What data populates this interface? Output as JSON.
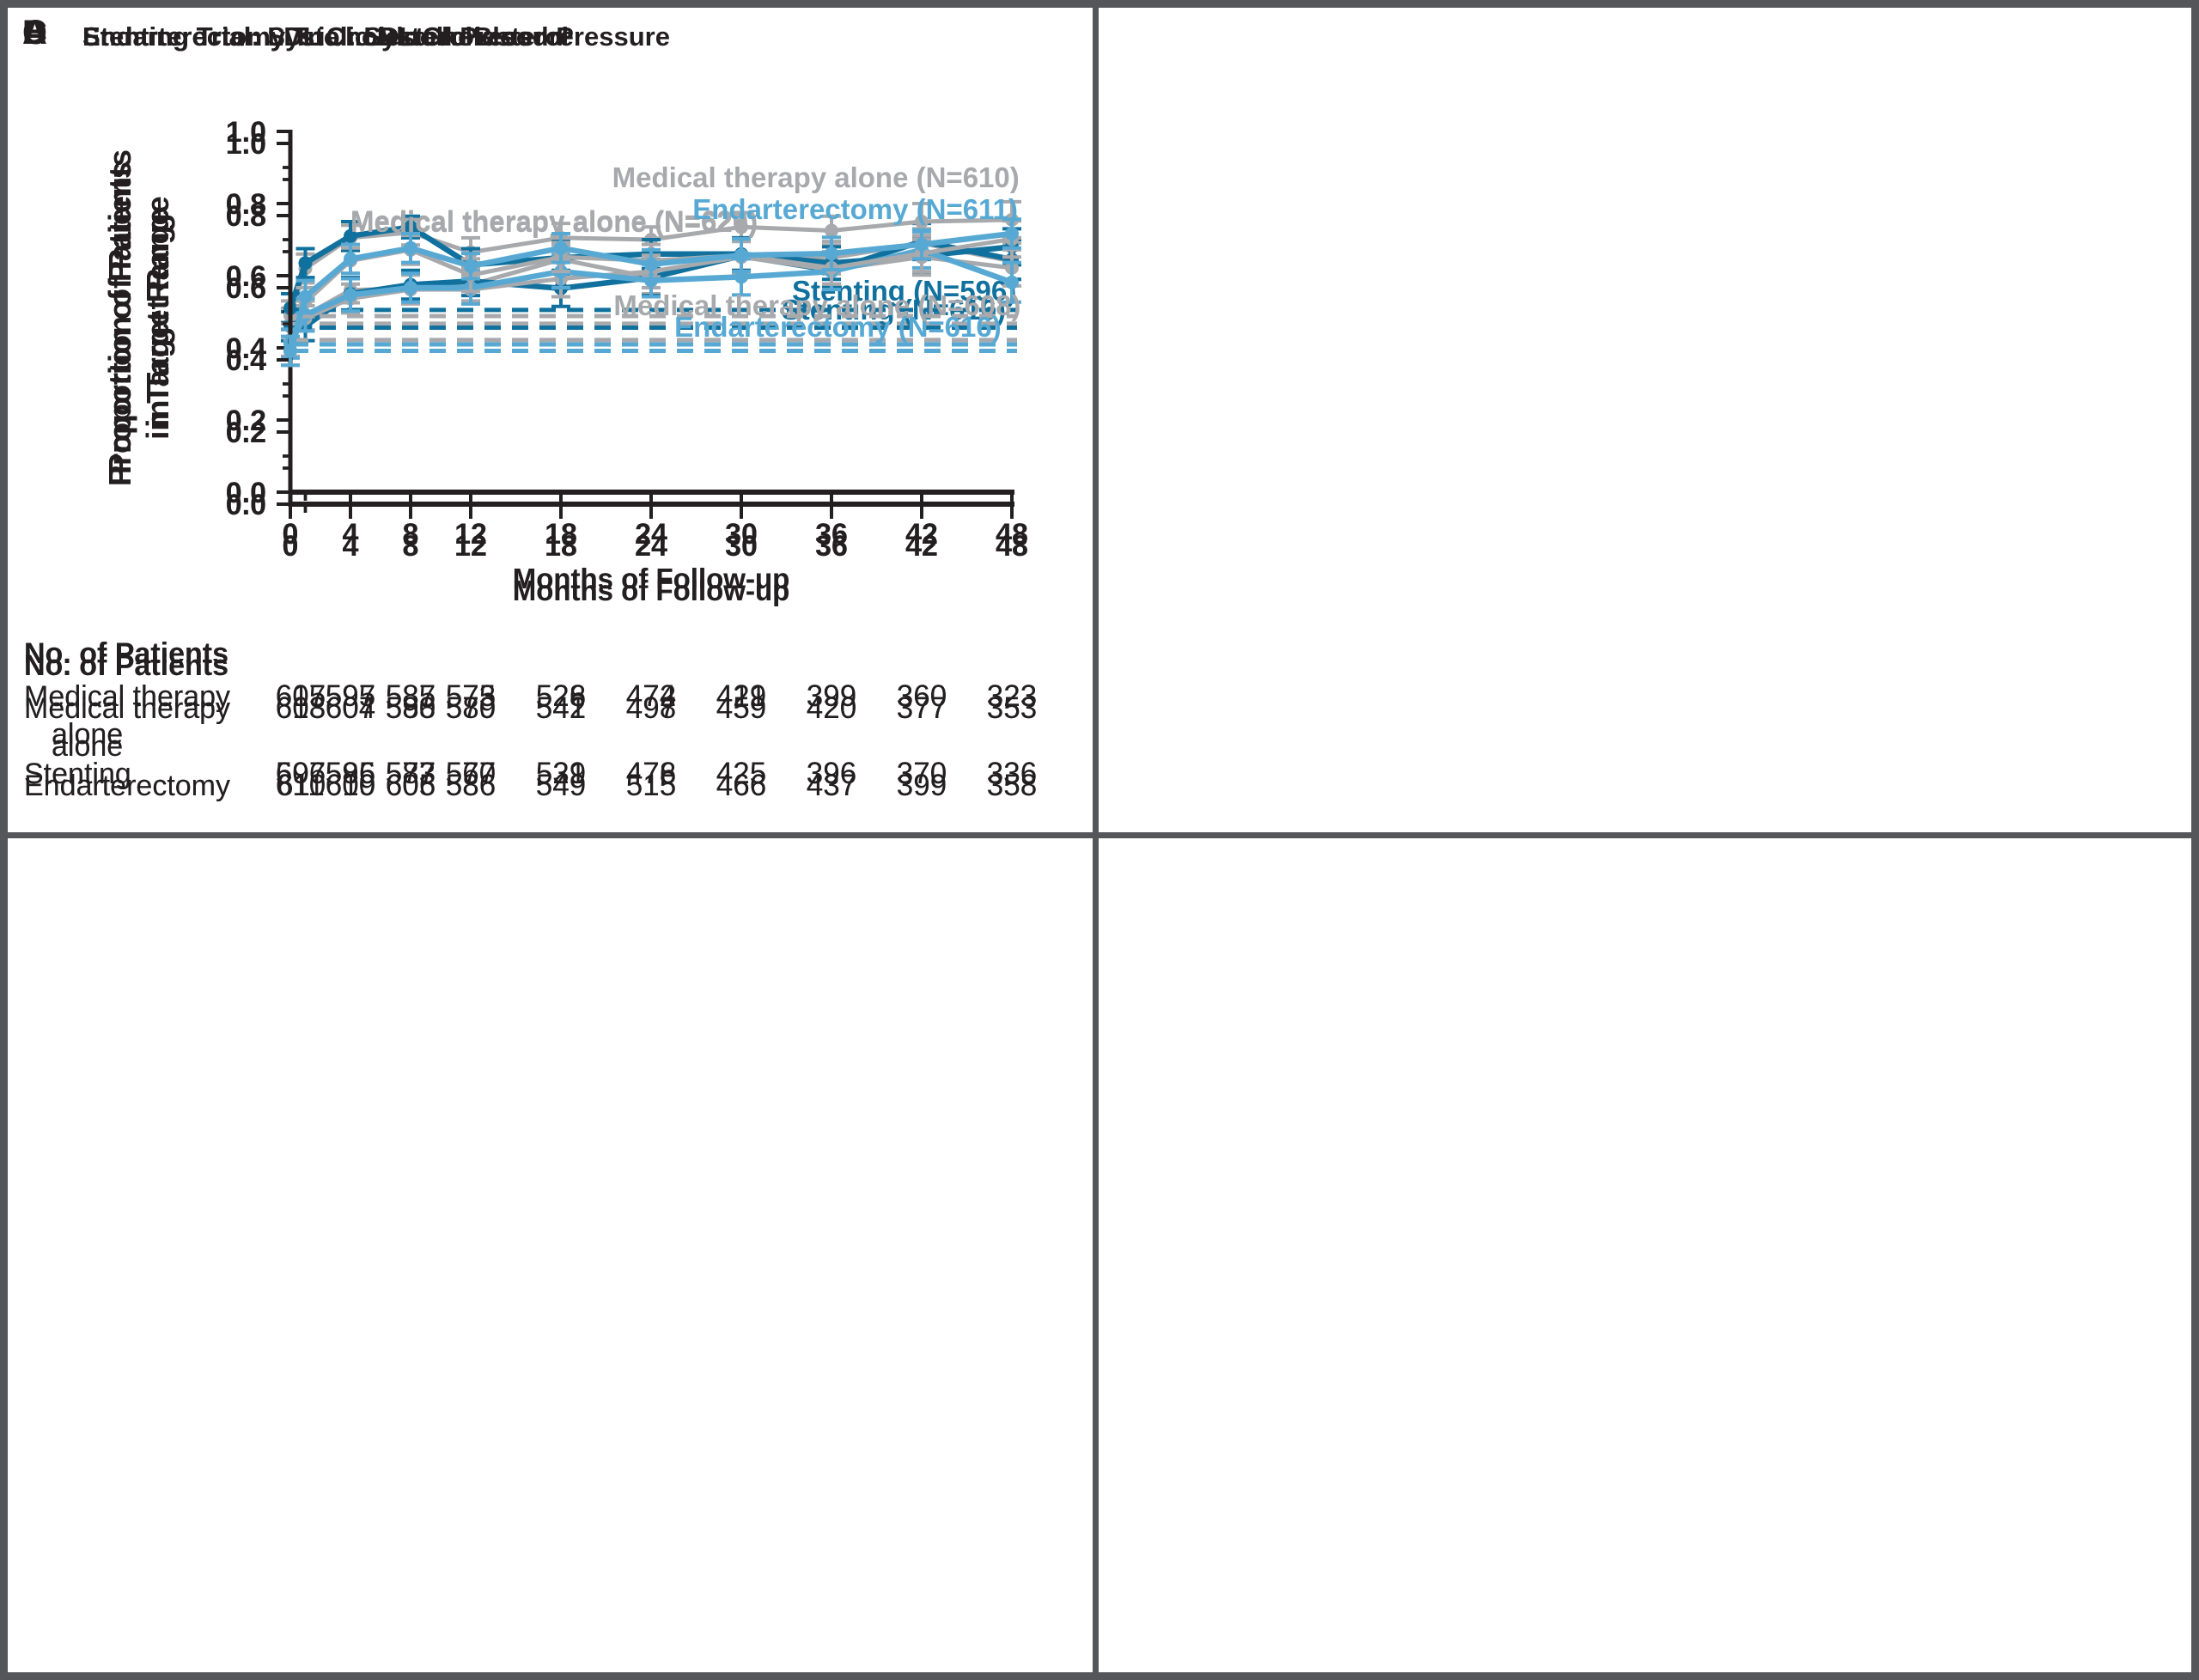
{
  "figure": {
    "background": "#ffffff",
    "frame_color": "#55565a",
    "ink_color": "#231f20",
    "ylabel_line1": "Proportion of Patients",
    "ylabel_line2": "in Target Range",
    "xlabel": "Months of Follow-up",
    "yticks": [
      "0.0",
      "0.2",
      "0.4",
      "0.6",
      "0.8",
      "1.0"
    ],
    "ytick_values": [
      0,
      0.2,
      0.4,
      0.6,
      0.8,
      1.0
    ],
    "yminor_values": [
      0.1,
      0.3,
      0.5,
      0.7,
      0.9
    ],
    "xticks": [
      0,
      4,
      8,
      12,
      18,
      24,
      30,
      36,
      42,
      48
    ],
    "xminor": [
      1
    ],
    "xlim": [
      0,
      48
    ],
    "ylim": [
      0,
      1
    ],
    "table_header": "No. of Patients"
  },
  "chart_data": [
    {
      "letter": "A",
      "title": "Stenting Trial: Systolic Blood Pressure",
      "type": "line",
      "x": [
        0,
        1,
        4,
        8,
        12,
        18,
        24,
        30,
        36,
        42,
        48
      ],
      "series": [
        {
          "name": "Medical therapy alone (N=626)",
          "color": "#a7a9ac",
          "values": [
            0.465,
            0.49,
            0.56,
            0.565,
            0.575,
            0.645,
            0.595,
            0.655,
            0.65,
            0.69,
            0.64
          ],
          "err": [
            0.045,
            0.04,
            0.035,
            0.04,
            0.045,
            0.04,
            0.045,
            0.04,
            0.045,
            0.04,
            0.05
          ],
          "baseline": 0.467,
          "label": {
            "xm": 4.0,
            "yv": 0.725,
            "anchor": "start"
          }
        },
        {
          "name": "Stenting (N=616)",
          "color": "#11719e",
          "values": [
            0.46,
            0.46,
            0.55,
            0.575,
            0.585,
            0.565,
            0.595,
            0.655,
            0.615,
            0.695,
            0.645
          ],
          "err": [
            0.04,
            0.04,
            0.045,
            0.04,
            0.04,
            0.05,
            0.05,
            0.045,
            0.045,
            0.05,
            0.055
          ],
          "baseline": 0.456,
          "label": {
            "xm": 47.6,
            "yv": 0.478,
            "anchor": "end"
          }
        }
      ],
      "table": {
        "rows": [
          {
            "label": [
              "Medical therapy",
              "alone"
            ],
            "values": [
              615,
              597,
              587,
              575,
              528,
              474,
              421,
              399,
              360,
              323
            ]
          },
          {
            "label": [
              "Stenting"
            ],
            "values": [
              607,
              595,
              583,
              570,
              531,
              478,
              425,
              396,
              370,
              336
            ]
          }
        ]
      }
    },
    {
      "letter": "B",
      "title": "Stenting Trial: LDL Cholesterol",
      "type": "line",
      "x": [
        0,
        1,
        4,
        8,
        12,
        18,
        24,
        30,
        36,
        42,
        48
      ],
      "series": [
        {
          "name": "Medical therapy alone (N=610)",
          "color": "#a7a9ac",
          "values": [
            0.49,
            0.62,
            0.705,
            0.72,
            0.665,
            0.705,
            0.7,
            0.735,
            0.725,
            0.75,
            0.755
          ],
          "err": [
            0.04,
            0.04,
            0.035,
            0.035,
            0.04,
            0.04,
            0.035,
            0.04,
            0.04,
            0.05,
            0.05
          ],
          "baseline": 0.488,
          "label": {
            "xm": 48.5,
            "yv": 0.845,
            "anchor": "end"
          }
        },
        {
          "name": "Stenting (N=596)",
          "color": "#11719e",
          "values": [
            0.51,
            0.635,
            0.71,
            0.735,
            0.63,
            0.65,
            0.66,
            0.66,
            0.635,
            0.655,
            0.68
          ],
          "err": [
            0.04,
            0.04,
            0.04,
            0.03,
            0.045,
            0.045,
            0.04,
            0.045,
            0.045,
            0.05,
            0.05
          ],
          "baseline": 0.505,
          "label": {
            "xm": 48.3,
            "yv": 0.531,
            "anchor": "end"
          }
        }
      ],
      "table": {
        "rows": [
          {
            "label": [
              "Medical therapy",
              "alone"
            ],
            "values": [
              607,
              595,
              585,
              573,
              526,
              472,
              419,
              399,
              360,
              323
            ]
          },
          {
            "label": [
              "Stenting"
            ],
            "values": [
              596,
              586,
              577,
              567,
              529,
              476,
              425,
              396,
              370,
              336
            ]
          }
        ]
      }
    },
    {
      "letter": "C",
      "title": "Endarterectomy Trial: Systolic Blood Pressure",
      "type": "line",
      "x": [
        0,
        1,
        4,
        8,
        12,
        18,
        24,
        30,
        36,
        42,
        48
      ],
      "series": [
        {
          "name": "Medical therapy alone (N=620)",
          "color": "#a7a9ac",
          "values": [
            0.455,
            0.515,
            0.57,
            0.595,
            0.595,
            0.625,
            0.645,
            0.685,
            0.65,
            0.685,
            0.655
          ],
          "err": [
            0.045,
            0.035,
            0.04,
            0.04,
            0.04,
            0.05,
            0.045,
            0.045,
            0.04,
            0.05,
            0.05
          ],
          "baseline": 0.455,
          "label": {
            "xm": 4.0,
            "yv": 0.755,
            "anchor": "start"
          }
        },
        {
          "name": "Endarterectomy (N=616)",
          "color": "#57a9d4",
          "values": [
            0.445,
            0.525,
            0.58,
            0.6,
            0.6,
            0.645,
            0.62,
            0.63,
            0.645,
            0.705,
            0.615
          ],
          "err": [
            0.04,
            0.045,
            0.045,
            0.04,
            0.045,
            0.045,
            0.045,
            0.05,
            0.05,
            0.05,
            0.055
          ],
          "baseline": 0.443,
          "label": {
            "xm": 47.3,
            "yv": 0.464,
            "anchor": "end"
          }
        }
      ],
      "table": {
        "rows": [
          {
            "label": [
              "Medical therapy",
              "alone"
            ],
            "values": [
              613,
              607,
              590,
              580,
              542,
              498,
              459,
              420,
              377,
              353
            ]
          },
          {
            "label": [
              "Endarterectomy"
            ],
            "values": [
              611,
              609,
              605,
              586,
              549,
              515,
              466,
              437,
              399,
              358
            ]
          }
        ]
      }
    },
    {
      "letter": "D",
      "title": "Endarterectomy Trial: LDL Cholesterol",
      "type": "line",
      "x": [
        0,
        1,
        4,
        8,
        12,
        18,
        24,
        30,
        36,
        42,
        48
      ],
      "series": [
        {
          "name": "Medical therapy alone (N=608)",
          "color": "#a7a9ac",
          "values": [
            0.425,
            0.56,
            0.675,
            0.705,
            0.635,
            0.685,
            0.675,
            0.69,
            0.655,
            0.695,
            0.735
          ],
          "err": [
            0.04,
            0.04,
            0.035,
            0.04,
            0.045,
            0.04,
            0.045,
            0.045,
            0.045,
            0.05,
            0.05
          ],
          "baseline": null,
          "label": {
            "xm": 48.6,
            "yv": 0.524,
            "anchor": "end"
          }
        },
        {
          "name": "Endarterectomy (N=611)",
          "color": "#57a9d4",
          "values": [
            0.425,
            0.575,
            0.68,
            0.71,
            0.66,
            0.71,
            0.665,
            0.69,
            0.695,
            0.72,
            0.75
          ],
          "err": [
            0.04,
            0.045,
            0.04,
            0.04,
            0.035,
            0.04,
            0.04,
            0.045,
            0.045,
            0.04,
            0.04
          ],
          "baseline": 0.425,
          "label": {
            "xm": 48.4,
            "yv": 0.79,
            "anchor": "end"
          }
        }
      ],
      "table": {
        "rows": [
          {
            "label": [
              "Medical therapy",
              "alone"
            ],
            "values": [
              608,
              604,
              588,
              579,
              541,
              497,
              459,
              420,
              377,
              353
            ]
          },
          {
            "label": [
              "Endarterectomy"
            ],
            "values": [
              610,
              610,
              606,
              586,
              549,
              515,
              466,
              437,
              399,
              358
            ]
          }
        ]
      }
    }
  ]
}
